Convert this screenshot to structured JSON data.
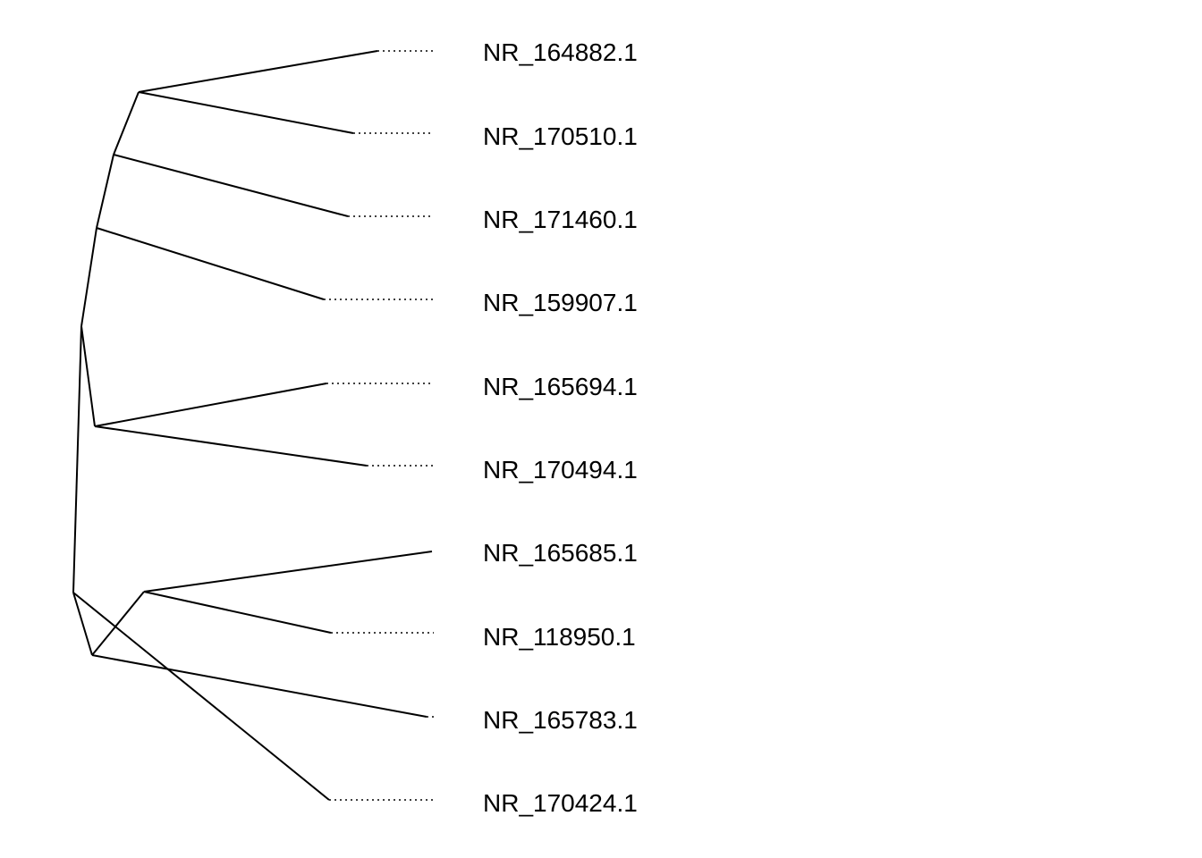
{
  "tree": {
    "tips": [
      "NR_164882.1",
      "NR_170510.1",
      "NR_171460.1",
      "NR_159907.1",
      "NR_165694.1",
      "NR_170494.1",
      "NR_165685.1",
      "NR_118950.1",
      "NR_165783.1",
      "NR_170424.1"
    ]
  }
}
